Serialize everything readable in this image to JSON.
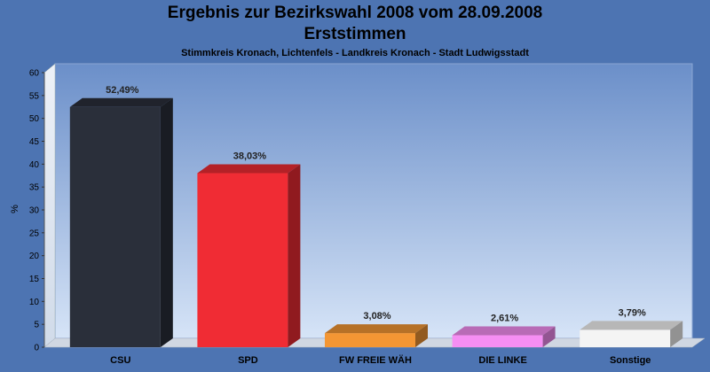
{
  "chart_data": {
    "type": "bar",
    "title": "Ergebnis zur Bezirkswahl 2008 vom 28.09.2008",
    "subtitle": "Erststimmen",
    "subsubtitle": "Stimmkreis Kronach, Lichtenfels - Landkreis Kronach - Stadt Ludwigsstadt",
    "ylabel": "%",
    "xlabel": "",
    "ylim": [
      0,
      60
    ],
    "yticks": [
      0,
      5,
      10,
      15,
      20,
      25,
      30,
      35,
      40,
      45,
      50,
      55,
      60
    ],
    "grid": false,
    "categories": [
      "CSU",
      "SPD",
      "FW FREIE WÄH",
      "DIE LINKE",
      "Sonstige"
    ],
    "values": [
      52.49,
      38.03,
      3.08,
      2.61,
      3.79
    ],
    "data_labels": [
      "52,49%",
      "38,03%",
      "3,08%",
      "2,61%",
      "3,79%"
    ],
    "colors": [
      "#2a2f3a",
      "#f02c34",
      "#f39634",
      "#f58ef3",
      "#f4f4f4"
    ]
  }
}
